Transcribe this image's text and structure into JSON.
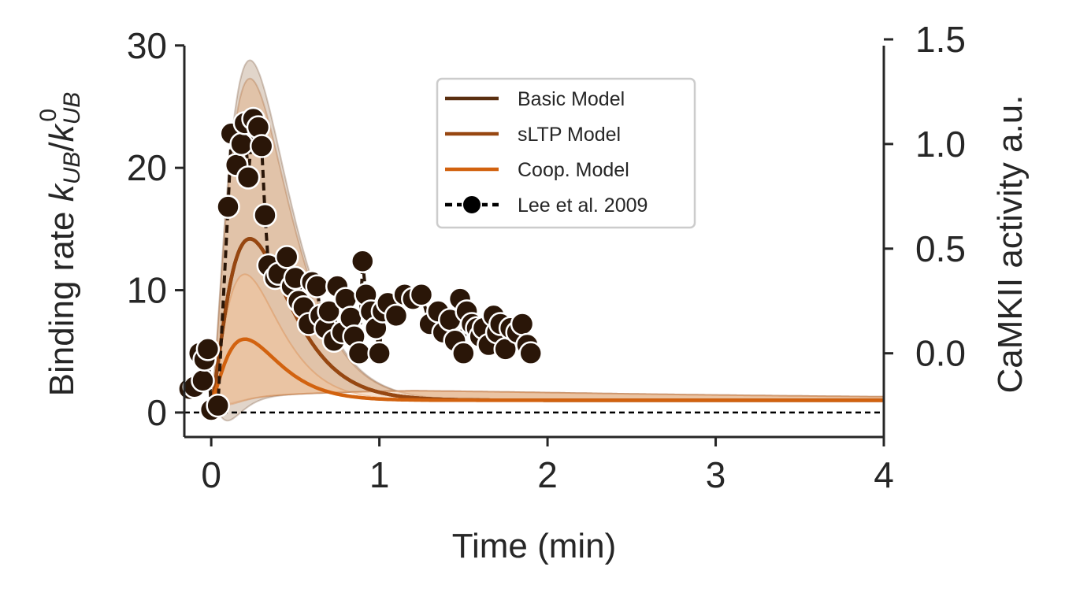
{
  "chart_data": {
    "type": "line",
    "xlabel": "Time (min)",
    "ylabel_prefix": "Binding rate ",
    "ylabel_math": "k_UB/k_UB^0",
    "ylabel_right": "CaMKII activity a.u.",
    "xlim": [
      -0.16,
      4
    ],
    "ylim": [
      -2,
      30.5
    ],
    "ylim_right": [
      -0.4,
      1.5
    ],
    "xticks": [
      0,
      1,
      2,
      3,
      4
    ],
    "xtick_labels": [
      "0",
      "1",
      "2",
      "3",
      "4"
    ],
    "yticks": [
      0,
      10,
      20,
      30
    ],
    "ytick_labels": [
      "0",
      "10",
      "20",
      "30"
    ],
    "yticks_right": [
      0.0,
      0.5,
      1.0,
      1.5
    ],
    "ytick_right_labels": [
      "0.0",
      "0.5",
      "1.0",
      "1.5"
    ],
    "grid": false,
    "legend_position": "top-center",
    "zero_reference_line": 0,
    "model_series": [
      {
        "name": "Basic Model",
        "color": "#5a2f10",
        "axis": "left",
        "peak": 14.2,
        "peak_time": 0.23,
        "band_upper_peak": 28.8,
        "band_lower_peak": -0.8,
        "band_lower_time": 0.1
      },
      {
        "name": "sLTP Model",
        "color": "#974711",
        "axis": "left",
        "peak": 14.2,
        "peak_time": 0.23,
        "band_upper_peak": 27.3,
        "band_lower_peak": 0.6,
        "band_lower_time": 0.1
      },
      {
        "name": "Coop. Model",
        "color": "#d2620f",
        "axis": "left",
        "peak": 6.0,
        "peak_time": 0.2,
        "band_upper_peak": 11.3,
        "band_lower_peak": 0.5,
        "band_lower_time": 0.1
      }
    ],
    "data_series": {
      "name": "Lee et al. 2009",
      "axis": "right",
      "color": "#2a1608",
      "x": [
        -0.13,
        -0.1,
        -0.07,
        -0.05,
        -0.04,
        -0.02,
        0.0,
        0.04,
        0.1,
        0.12,
        0.15,
        0.18,
        0.2,
        0.22,
        0.25,
        0.28,
        0.3,
        0.32,
        0.34,
        0.38,
        0.4,
        0.45,
        0.48,
        0.5,
        0.52,
        0.55,
        0.58,
        0.6,
        0.63,
        0.65,
        0.68,
        0.7,
        0.73,
        0.75,
        0.78,
        0.8,
        0.83,
        0.85,
        0.88,
        0.9,
        0.92,
        0.95,
        0.98,
        1.0,
        1.02,
        1.05,
        1.1,
        1.15,
        1.2,
        1.25,
        1.3,
        1.35,
        1.38,
        1.42,
        1.45,
        1.48,
        1.5,
        1.52,
        1.55,
        1.58,
        1.6,
        1.62,
        1.65,
        1.68,
        1.7,
        1.72,
        1.75,
        1.78,
        1.82,
        1.85,
        1.88,
        1.9
      ],
      "y": [
        -0.17,
        -0.16,
        0.0,
        -0.13,
        -0.03,
        0.02,
        -0.27,
        -0.25,
        0.7,
        1.05,
        0.9,
        1.0,
        1.1,
        0.84,
        1.12,
        1.08,
        0.99,
        0.66,
        0.42,
        0.36,
        0.38,
        0.46,
        0.32,
        0.36,
        0.25,
        0.22,
        0.14,
        0.34,
        0.32,
        0.18,
        0.12,
        0.2,
        0.06,
        0.32,
        0.1,
        0.26,
        0.17,
        0.08,
        0.0,
        0.44,
        0.28,
        0.2,
        0.12,
        0.0,
        0.2,
        0.24,
        0.18,
        0.28,
        0.26,
        0.28,
        0.14,
        0.2,
        0.1,
        0.16,
        0.06,
        0.26,
        0.0,
        0.2,
        0.14,
        0.12,
        0.08,
        0.12,
        0.04,
        0.18,
        0.1,
        0.14,
        0.02,
        0.12,
        0.1,
        0.14,
        0.04,
        0.0
      ]
    }
  }
}
